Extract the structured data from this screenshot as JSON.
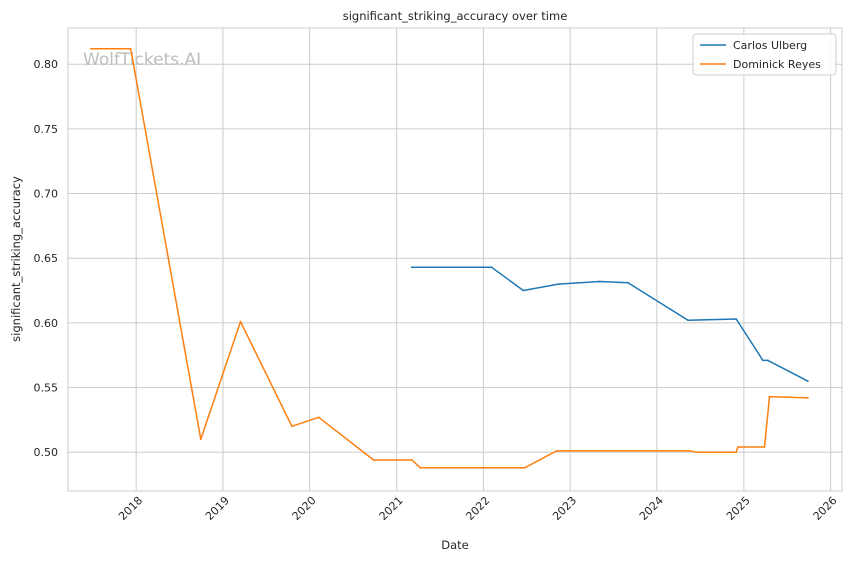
{
  "chart_data": {
    "type": "line",
    "title": "significant_striking_accuracy over time",
    "xlabel": "Date",
    "ylabel": "significant_striking_accuracy",
    "xlim": [
      "2017-03-20",
      "2026-02-18"
    ],
    "ylim": [
      0.47,
      0.828
    ],
    "x_ticks": [
      "2018",
      "2019",
      "2020",
      "2021",
      "2022",
      "2023",
      "2024",
      "2025",
      "2026"
    ],
    "y_ticks": [
      "0.50",
      "0.55",
      "0.60",
      "0.65",
      "0.70",
      "0.75",
      "0.80"
    ],
    "grid": true,
    "legend_position": "top-right",
    "watermark": "WolfTickets.AI",
    "series": [
      {
        "name": "Carlos Ulberg",
        "color": "#1f77b4",
        "points": [
          {
            "x": "2021-03-06",
            "y": 0.643
          },
          {
            "x": "2022-02-05",
            "y": 0.643
          },
          {
            "x": "2022-06-18",
            "y": 0.625
          },
          {
            "x": "2022-11-12",
            "y": 0.63
          },
          {
            "x": "2023-05-06",
            "y": 0.632
          },
          {
            "x": "2023-09-02",
            "y": 0.631
          },
          {
            "x": "2024-05-11",
            "y": 0.602
          },
          {
            "x": "2024-11-30",
            "y": 0.603
          },
          {
            "x": "2025-03-22",
            "y": 0.571
          },
          {
            "x": "2025-04-12",
            "y": 0.571
          },
          {
            "x": "2025-09-27",
            "y": 0.555
          }
        ]
      },
      {
        "name": "Dominick Reyes",
        "color": "#ff7f0e",
        "points": [
          {
            "x": "2017-06-25",
            "y": 0.812
          },
          {
            "x": "2017-12-09",
            "y": 0.812
          },
          {
            "x": "2018-09-30",
            "y": 0.51
          },
          {
            "x": "2019-03-16",
            "y": 0.601
          },
          {
            "x": "2019-10-18",
            "y": 0.52
          },
          {
            "x": "2020-02-08",
            "y": 0.527
          },
          {
            "x": "2020-09-26",
            "y": 0.494
          },
          {
            "x": "2021-03-06",
            "y": 0.494
          },
          {
            "x": "2021-04-10",
            "y": 0.488
          },
          {
            "x": "2022-06-25",
            "y": 0.488
          },
          {
            "x": "2022-11-05",
            "y": 0.501
          },
          {
            "x": "2024-05-18",
            "y": 0.501
          },
          {
            "x": "2024-06-15",
            "y": 0.5
          },
          {
            "x": "2024-11-30",
            "y": 0.5
          },
          {
            "x": "2024-12-07",
            "y": 0.504
          },
          {
            "x": "2025-03-29",
            "y": 0.504
          },
          {
            "x": "2025-04-19",
            "y": 0.543
          },
          {
            "x": "2025-09-27",
            "y": 0.542
          }
        ]
      }
    ]
  }
}
